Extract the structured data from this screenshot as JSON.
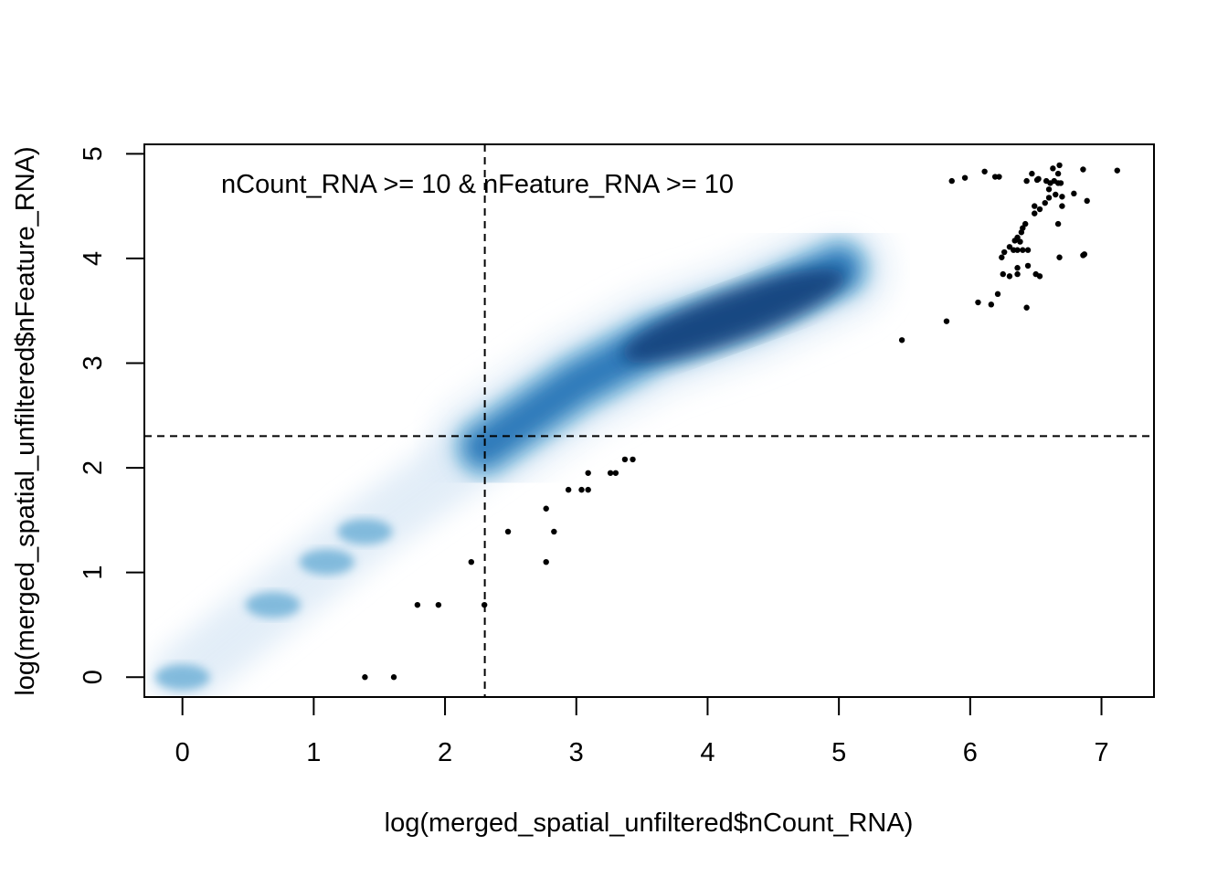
{
  "chart_data": {
    "type": "scatter",
    "style": "smoothScatter density plot",
    "xlabel": "log(merged_spatial_unfiltered$nCount_RNA)",
    "ylabel": "log(merged_spatial_unfiltered$nFeature_RNA)",
    "annotation": "nCount_RNA >= 10 & nFeature_RNA >= 10",
    "xlim": [
      -0.29,
      7.4
    ],
    "ylim": [
      -0.19,
      5.09
    ],
    "x_ticks": [
      0,
      1,
      2,
      3,
      4,
      5,
      6,
      7
    ],
    "y_ticks": [
      0,
      1,
      2,
      3,
      4,
      5
    ],
    "thresholds": {
      "x": 2.303,
      "y": 2.303,
      "line_style": "dashed"
    },
    "colors": {
      "density_dark": "#08306b",
      "density_mid": "#2171b5",
      "density_light": "#6baed6",
      "points": "#000000"
    },
    "density_core": [
      {
        "x": 0.0,
        "y": 0.0
      },
      {
        "x": 0.69,
        "y": 0.69
      },
      {
        "x": 1.1,
        "y": 1.1
      },
      {
        "x": 1.39,
        "y": 1.39
      },
      {
        "x": 2.3,
        "y": 2.2
      },
      {
        "x": 3.0,
        "y": 2.8
      },
      {
        "x": 3.6,
        "y": 3.2
      },
      {
        "x": 4.3,
        "y": 3.5
      },
      {
        "x": 5.0,
        "y": 3.9
      }
    ],
    "outlier_points": [
      {
        "x": 1.39,
        "y": 0.0
      },
      {
        "x": 1.61,
        "y": 0.0
      },
      {
        "x": 1.79,
        "y": 0.69
      },
      {
        "x": 1.95,
        "y": 0.69
      },
      {
        "x": 2.3,
        "y": 0.69
      },
      {
        "x": 2.2,
        "y": 1.1
      },
      {
        "x": 2.77,
        "y": 1.1
      },
      {
        "x": 2.48,
        "y": 1.39
      },
      {
        "x": 2.83,
        "y": 1.39
      },
      {
        "x": 2.77,
        "y": 1.61
      },
      {
        "x": 2.94,
        "y": 1.79
      },
      {
        "x": 3.04,
        "y": 1.79
      },
      {
        "x": 3.09,
        "y": 1.79
      },
      {
        "x": 3.09,
        "y": 1.95
      },
      {
        "x": 3.26,
        "y": 1.95
      },
      {
        "x": 3.3,
        "y": 1.95
      },
      {
        "x": 3.37,
        "y": 2.08
      },
      {
        "x": 3.43,
        "y": 2.08
      },
      {
        "x": 5.48,
        "y": 3.22
      },
      {
        "x": 5.82,
        "y": 3.4
      },
      {
        "x": 6.06,
        "y": 3.58
      },
      {
        "x": 6.16,
        "y": 3.56
      },
      {
        "x": 6.21,
        "y": 3.66
      },
      {
        "x": 6.43,
        "y": 3.53
      },
      {
        "x": 6.25,
        "y": 3.85
      },
      {
        "x": 6.3,
        "y": 3.83
      },
      {
        "x": 6.36,
        "y": 3.85
      },
      {
        "x": 6.36,
        "y": 3.91
      },
      {
        "x": 6.44,
        "y": 3.93
      },
      {
        "x": 6.5,
        "y": 3.85
      },
      {
        "x": 6.53,
        "y": 3.83
      },
      {
        "x": 6.24,
        "y": 4.01
      },
      {
        "x": 6.26,
        "y": 4.06
      },
      {
        "x": 6.3,
        "y": 4.11
      },
      {
        "x": 6.33,
        "y": 4.08
      },
      {
        "x": 6.36,
        "y": 4.08
      },
      {
        "x": 6.4,
        "y": 4.08
      },
      {
        "x": 6.44,
        "y": 4.08
      },
      {
        "x": 6.68,
        "y": 4.01
      },
      {
        "x": 6.86,
        "y": 4.03
      },
      {
        "x": 6.87,
        "y": 4.04
      },
      {
        "x": 6.34,
        "y": 4.17
      },
      {
        "x": 6.36,
        "y": 4.2
      },
      {
        "x": 6.38,
        "y": 4.16
      },
      {
        "x": 6.39,
        "y": 4.25
      },
      {
        "x": 6.4,
        "y": 4.29
      },
      {
        "x": 6.42,
        "y": 4.33
      },
      {
        "x": 6.49,
        "y": 4.43
      },
      {
        "x": 6.49,
        "y": 4.5
      },
      {
        "x": 6.53,
        "y": 4.47
      },
      {
        "x": 6.57,
        "y": 4.53
      },
      {
        "x": 6.67,
        "y": 4.33
      },
      {
        "x": 6.7,
        "y": 4.5
      },
      {
        "x": 6.6,
        "y": 4.58
      },
      {
        "x": 6.65,
        "y": 4.61
      },
      {
        "x": 6.6,
        "y": 4.66
      },
      {
        "x": 6.7,
        "y": 4.59
      },
      {
        "x": 6.79,
        "y": 4.62
      },
      {
        "x": 6.89,
        "y": 4.55
      },
      {
        "x": 6.43,
        "y": 4.74
      },
      {
        "x": 6.47,
        "y": 4.81
      },
      {
        "x": 6.51,
        "y": 4.75
      },
      {
        "x": 6.52,
        "y": 4.76
      },
      {
        "x": 6.58,
        "y": 4.74
      },
      {
        "x": 6.61,
        "y": 4.72
      },
      {
        "x": 6.64,
        "y": 4.74
      },
      {
        "x": 6.67,
        "y": 4.72
      },
      {
        "x": 6.69,
        "y": 4.72
      },
      {
        "x": 6.63,
        "y": 4.86
      },
      {
        "x": 6.67,
        "y": 4.81
      },
      {
        "x": 6.68,
        "y": 4.89
      },
      {
        "x": 6.86,
        "y": 4.85
      },
      {
        "x": 5.86,
        "y": 4.74
      },
      {
        "x": 5.96,
        "y": 4.77
      },
      {
        "x": 6.11,
        "y": 4.83
      },
      {
        "x": 6.19,
        "y": 4.78
      },
      {
        "x": 6.22,
        "y": 4.78
      },
      {
        "x": 7.12,
        "y": 4.84
      }
    ]
  }
}
